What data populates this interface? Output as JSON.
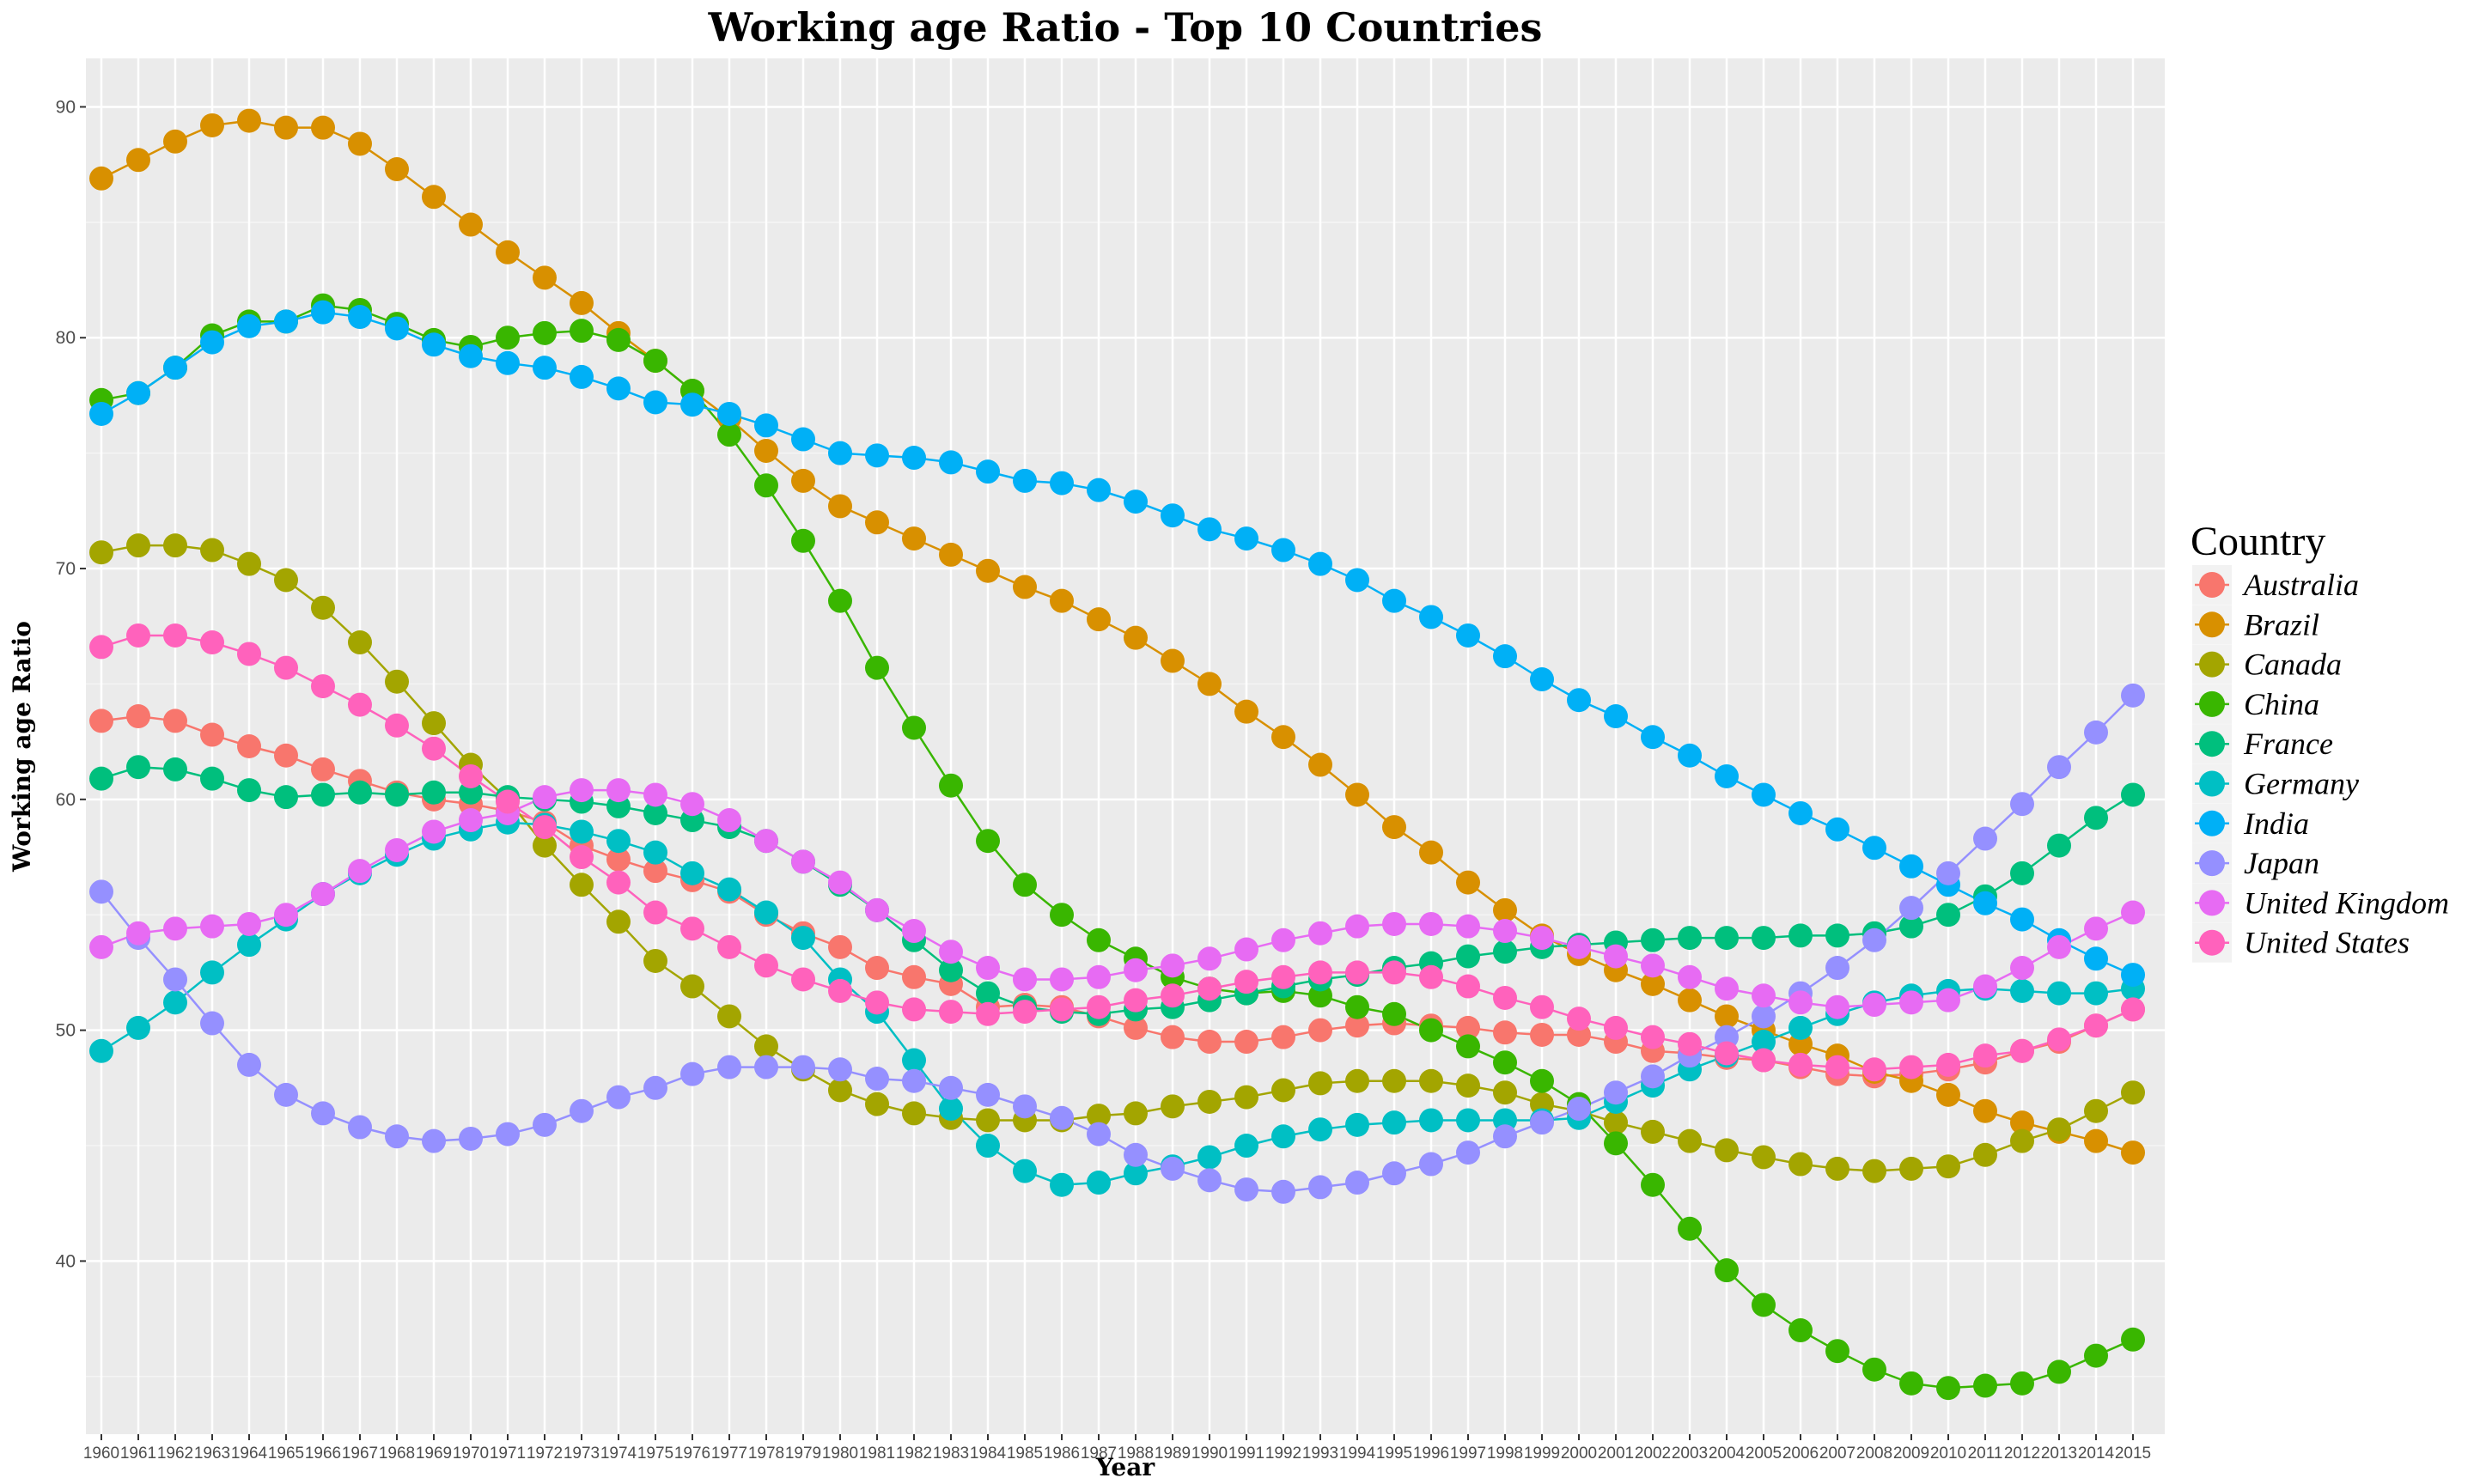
{
  "chart_data": {
    "type": "line",
    "title": "Working age Ratio - Top 10 Countries",
    "xlabel": "Year",
    "ylabel": "Working age Ratio",
    "legend_title": "Country",
    "legend_position": "right",
    "grid": true,
    "xlim": [
      1960,
      2015
    ],
    "ylim": [
      32.5,
      92.1
    ],
    "yticks": [
      40,
      50,
      60,
      70,
      80,
      90
    ],
    "x": [
      "1960",
      "1961",
      "1962",
      "1963",
      "1964",
      "1965",
      "1966",
      "1967",
      "1968",
      "1969",
      "1970",
      "1971",
      "1972",
      "1973",
      "1974",
      "1975",
      "1976",
      "1977",
      "1978",
      "1979",
      "1980",
      "1981",
      "1982",
      "1983",
      "1984",
      "1985",
      "1986",
      "1987",
      "1988",
      "1989",
      "1990",
      "1991",
      "1992",
      "1993",
      "1994",
      "1995",
      "1996",
      "1997",
      "1998",
      "1999",
      "2000",
      "2001",
      "2002",
      "2003",
      "2004",
      "2005",
      "2006",
      "2007",
      "2008",
      "2009",
      "2010",
      "2011",
      "2012",
      "2013",
      "2014",
      "2015"
    ],
    "series": [
      {
        "name": "Australia",
        "color": "#F8766D",
        "values": [
          63.4,
          63.6,
          63.4,
          62.8,
          62.3,
          61.9,
          61.3,
          60.8,
          60.3,
          60.0,
          59.8,
          59.5,
          59.0,
          58.0,
          57.4,
          56.9,
          56.5,
          56.0,
          55.0,
          54.2,
          53.6,
          52.7,
          52.3,
          52.0,
          51.0,
          51.1,
          51.0,
          50.6,
          50.1,
          49.7,
          49.5,
          49.5,
          49.7,
          50.0,
          50.2,
          50.3,
          50.2,
          50.1,
          49.9,
          49.8,
          49.8,
          49.5,
          49.1,
          49.0,
          48.8,
          48.7,
          48.4,
          48.1,
          48.0,
          48.1,
          48.3,
          48.6,
          49.1,
          49.5,
          50.2,
          50.9
        ]
      },
      {
        "name": "Brazil",
        "color": "#D89000",
        "values": [
          86.9,
          87.7,
          88.5,
          89.2,
          89.4,
          89.1,
          89.1,
          88.4,
          87.3,
          86.1,
          84.9,
          83.7,
          82.6,
          81.5,
          80.2,
          79.0,
          77.7,
          76.5,
          75.1,
          73.8,
          72.7,
          72.0,
          71.3,
          70.6,
          69.9,
          69.2,
          68.6,
          67.8,
          67.0,
          66.0,
          65.0,
          63.8,
          62.7,
          61.5,
          60.2,
          58.8,
          57.7,
          56.4,
          55.2,
          54.1,
          53.3,
          52.6,
          52.0,
          51.3,
          50.6,
          50.0,
          49.4,
          48.9,
          48.2,
          47.8,
          47.2,
          46.5,
          46.0,
          45.6,
          45.2,
          44.7
        ]
      },
      {
        "name": "Canada",
        "color": "#A3A500",
        "values": [
          70.7,
          71.0,
          71.0,
          70.8,
          70.2,
          69.5,
          68.3,
          66.8,
          65.1,
          63.3,
          61.5,
          60.0,
          58.0,
          56.3,
          54.7,
          53.0,
          51.9,
          50.6,
          49.3,
          48.3,
          47.4,
          46.8,
          46.4,
          46.2,
          46.1,
          46.1,
          46.1,
          46.3,
          46.4,
          46.7,
          46.9,
          47.1,
          47.4,
          47.7,
          47.8,
          47.8,
          47.8,
          47.6,
          47.3,
          46.8,
          46.5,
          46.0,
          45.6,
          45.2,
          44.8,
          44.5,
          44.2,
          44.0,
          43.9,
          44.0,
          44.1,
          44.6,
          45.2,
          45.7,
          46.5,
          47.3
        ]
      },
      {
        "name": "China",
        "color": "#39B600",
        "values": [
          77.3,
          77.6,
          78.7,
          80.1,
          80.7,
          80.7,
          81.4,
          81.2,
          80.6,
          79.9,
          79.6,
          80.0,
          80.2,
          80.3,
          79.9,
          79.0,
          77.7,
          75.8,
          73.6,
          71.2,
          68.6,
          65.7,
          63.1,
          60.6,
          58.2,
          56.3,
          55.0,
          53.9,
          53.1,
          52.3,
          51.8,
          51.6,
          51.7,
          51.5,
          51.0,
          50.7,
          50.0,
          49.3,
          48.6,
          47.8,
          46.8,
          45.1,
          43.3,
          41.4,
          39.6,
          38.1,
          37.0,
          36.1,
          35.3,
          34.7,
          34.5,
          34.6,
          34.7,
          35.2,
          35.9,
          36.6
        ]
      },
      {
        "name": "France",
        "color": "#00BF7D",
        "values": [
          60.9,
          61.4,
          61.3,
          60.9,
          60.4,
          60.1,
          60.2,
          60.3,
          60.2,
          60.3,
          60.3,
          60.1,
          60.0,
          59.9,
          59.7,
          59.4,
          59.1,
          58.8,
          58.2,
          57.3,
          56.3,
          55.2,
          53.9,
          52.6,
          51.6,
          51.0,
          50.8,
          50.7,
          50.9,
          51.0,
          51.3,
          51.6,
          51.9,
          52.2,
          52.4,
          52.7,
          52.9,
          53.2,
          53.4,
          53.6,
          53.7,
          53.8,
          53.9,
          54.0,
          54.0,
          54.0,
          54.1,
          54.1,
          54.2,
          54.5,
          55.0,
          55.8,
          56.8,
          58.0,
          59.2,
          60.2
        ]
      },
      {
        "name": "Germany",
        "color": "#00BFC4",
        "values": [
          49.1,
          50.1,
          51.2,
          52.5,
          53.7,
          54.8,
          55.9,
          56.8,
          57.6,
          58.3,
          58.7,
          59.0,
          58.9,
          58.6,
          58.2,
          57.7,
          56.8,
          56.1,
          55.1,
          54.0,
          52.2,
          50.8,
          48.7,
          46.6,
          45.0,
          43.9,
          43.3,
          43.4,
          43.8,
          44.1,
          44.5,
          45.0,
          45.4,
          45.7,
          45.9,
          46.0,
          46.1,
          46.1,
          46.1,
          46.1,
          46.2,
          46.9,
          47.6,
          48.3,
          48.9,
          49.5,
          50.1,
          50.7,
          51.2,
          51.5,
          51.7,
          51.8,
          51.7,
          51.6,
          51.6,
          51.8
        ]
      },
      {
        "name": "India",
        "color": "#00B0F6",
        "values": [
          76.7,
          77.6,
          78.7,
          79.8,
          80.5,
          80.7,
          81.1,
          80.9,
          80.4,
          79.7,
          79.2,
          78.9,
          78.7,
          78.3,
          77.8,
          77.2,
          77.1,
          76.7,
          76.2,
          75.6,
          75.0,
          74.9,
          74.8,
          74.6,
          74.2,
          73.8,
          73.7,
          73.4,
          72.9,
          72.3,
          71.7,
          71.3,
          70.8,
          70.2,
          69.5,
          68.6,
          67.9,
          67.1,
          66.2,
          65.2,
          64.3,
          63.6,
          62.7,
          61.9,
          61.0,
          60.2,
          59.4,
          58.7,
          57.9,
          57.1,
          56.3,
          55.5,
          54.8,
          53.9,
          53.1,
          52.4
        ]
      },
      {
        "name": "Japan",
        "color": "#9590FF",
        "values": [
          56.0,
          54.0,
          52.2,
          50.3,
          48.5,
          47.2,
          46.4,
          45.8,
          45.4,
          45.2,
          45.3,
          45.5,
          45.9,
          46.5,
          47.1,
          47.5,
          48.1,
          48.4,
          48.4,
          48.4,
          48.3,
          47.9,
          47.8,
          47.5,
          47.2,
          46.7,
          46.2,
          45.5,
          44.6,
          44.0,
          43.5,
          43.1,
          43.0,
          43.2,
          43.4,
          43.8,
          44.2,
          44.7,
          45.4,
          46.0,
          46.6,
          47.3,
          48.0,
          48.9,
          49.7,
          50.6,
          51.6,
          52.7,
          53.9,
          55.3,
          56.8,
          58.3,
          59.8,
          61.4,
          62.9,
          64.5
        ]
      },
      {
        "name": "United Kingdom",
        "color": "#E76BF3",
        "values": [
          53.6,
          54.2,
          54.4,
          54.5,
          54.6,
          55.0,
          55.9,
          56.9,
          57.8,
          58.6,
          59.1,
          59.4,
          60.1,
          60.4,
          60.4,
          60.2,
          59.8,
          59.1,
          58.2,
          57.3,
          56.4,
          55.2,
          54.3,
          53.4,
          52.7,
          52.2,
          52.2,
          52.3,
          52.6,
          52.8,
          53.1,
          53.5,
          53.9,
          54.2,
          54.5,
          54.6,
          54.6,
          54.5,
          54.3,
          54.0,
          53.6,
          53.2,
          52.8,
          52.3,
          51.8,
          51.5,
          51.2,
          51.0,
          51.1,
          51.2,
          51.3,
          51.9,
          52.7,
          53.6,
          54.4,
          55.1
        ]
      },
      {
        "name": "United States",
        "color": "#FF62BC",
        "values": [
          66.6,
          67.1,
          67.1,
          66.8,
          66.3,
          65.7,
          64.9,
          64.1,
          63.2,
          62.2,
          61.0,
          59.9,
          58.8,
          57.5,
          56.4,
          55.1,
          54.4,
          53.6,
          52.8,
          52.2,
          51.7,
          51.2,
          50.9,
          50.8,
          50.7,
          50.8,
          50.9,
          51.0,
          51.3,
          51.5,
          51.8,
          52.1,
          52.3,
          52.5,
          52.5,
          52.5,
          52.3,
          51.9,
          51.4,
          51.0,
          50.5,
          50.1,
          49.7,
          49.4,
          49.0,
          48.7,
          48.5,
          48.4,
          48.3,
          48.4,
          48.5,
          48.9,
          49.1,
          49.6,
          50.2,
          50.9
        ]
      }
    ]
  }
}
